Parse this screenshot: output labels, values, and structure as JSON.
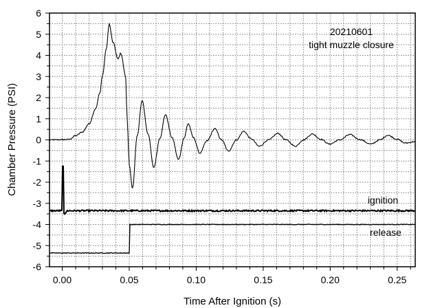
{
  "chart_data": {
    "type": "line",
    "xlabel": "Time After Ignition (s)",
    "ylabel": "Chamber Pressure (PSI)",
    "xlim": [
      -0.0095,
      0.2635
    ],
    "ylim": [
      -6,
      6
    ],
    "xticks": [
      0.0,
      0.05,
      0.1,
      0.15,
      0.2,
      0.25
    ],
    "xtick_labels": [
      "0.00",
      "0.05",
      "0.10",
      "0.15",
      "0.20",
      "0.25"
    ],
    "yticks": [
      -6,
      -5,
      -4,
      -3,
      -2,
      -1,
      0,
      1,
      2,
      3,
      4,
      5,
      6
    ],
    "ytick_labels": [
      "-6",
      "-5",
      "-4",
      "-3",
      "-2",
      "-1",
      "0",
      "1",
      "2",
      "3",
      "4",
      "5",
      "6"
    ],
    "grid": true,
    "annotation": {
      "line1": "20210601",
      "line2": "tight muzzle closure"
    },
    "series": [
      {
        "name": "chamber pressure",
        "x": [
          -0.0095,
          0.005,
          0.01,
          0.015,
          0.02,
          0.025,
          0.028,
          0.03,
          0.033,
          0.035,
          0.038,
          0.0416,
          0.0437,
          0.0473,
          0.048,
          0.0489,
          0.05,
          0.0524,
          0.056,
          0.0596,
          0.064,
          0.0683,
          0.073,
          0.077,
          0.082,
          0.0868,
          0.091,
          0.094,
          0.098,
          0.1027,
          0.108,
          0.1139,
          0.119,
          0.124,
          0.13,
          0.1355,
          0.141,
          0.147,
          0.154,
          0.161,
          0.167,
          0.174,
          0.18,
          0.1867,
          0.193,
          0.1995,
          0.207,
          0.2148,
          0.222,
          0.2304,
          0.237,
          0.243,
          0.25,
          0.256,
          0.2635
        ],
        "y": [
          0,
          0.02,
          0.2,
          0.37,
          0.76,
          1.48,
          2.2,
          3.04,
          4.34,
          5.48,
          4.6,
          3.82,
          4.1,
          3.04,
          1.74,
          0.44,
          -1.2,
          -2.3,
          0.2,
          1.87,
          0.3,
          -1.3,
          0.1,
          1.2,
          0.1,
          -0.93,
          0.1,
          0.77,
          0.1,
          -0.63,
          -0.05,
          0.53,
          0,
          -0.53,
          0,
          0.41,
          0.05,
          -0.3,
          0,
          0.31,
          0,
          -0.3,
          0,
          0.28,
          0.03,
          -0.2,
          0,
          0.25,
          0.02,
          -0.2,
          0,
          0.22,
          0.03,
          -0.15,
          -0.08
        ]
      },
      {
        "name": "ignition",
        "label": "ignition",
        "baseline": -3.35,
        "spike_x": 0.0005,
        "spike_max": -1.25,
        "spike_min": -3.6
      },
      {
        "name": "release",
        "label": "release",
        "before": -5.35,
        "after": -4.0,
        "step_x": 0.0505
      }
    ]
  }
}
